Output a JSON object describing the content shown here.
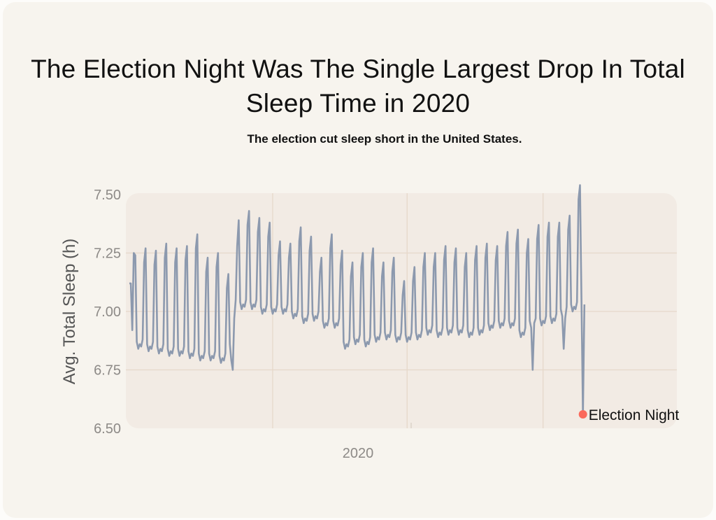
{
  "chart_data": {
    "type": "line",
    "title": "The Election Night Was The Single Largest Drop In Total Sleep Time in 2020",
    "subtitle": "The election cut sleep short in the United States.",
    "ylabel": "Avg. Total Sleep (h)",
    "xlabel": "2020",
    "ylim": [
      6.5,
      7.5
    ],
    "yticks": [
      "6.50",
      "6.75",
      "7.00",
      "7.25",
      "7.50"
    ],
    "xlim": [
      "2020-01-01",
      "2020-12-31"
    ],
    "x_start": "2020-01-01",
    "x_step": "1 day",
    "grid": true,
    "colors": {
      "line": "#8c99ae",
      "highlight": "#fb6a5c",
      "plot_bg": "#f2ebe4",
      "grid": "#e6d8ca"
    },
    "annotation": {
      "label": "Election Night",
      "date": "2020-11-03",
      "value": 6.56
    },
    "values": [
      7.12,
      7.12,
      6.92,
      7.25,
      7.24,
      6.87,
      6.84,
      6.86,
      6.85,
      6.88,
      7.21,
      7.27,
      6.86,
      6.83,
      6.85,
      6.84,
      6.87,
      7.2,
      7.26,
      6.85,
      6.82,
      6.84,
      6.83,
      6.86,
      7.23,
      7.29,
      6.84,
      6.81,
      6.83,
      6.82,
      6.85,
      7.21,
      7.27,
      6.84,
      6.81,
      6.83,
      6.82,
      6.85,
      7.22,
      7.28,
      6.83,
      6.8,
      6.82,
      6.81,
      6.84,
      7.27,
      7.33,
      6.82,
      6.79,
      6.81,
      6.8,
      6.83,
      7.17,
      7.23,
      6.82,
      6.79,
      6.81,
      6.8,
      6.83,
      7.19,
      7.25,
      6.81,
      6.78,
      6.8,
      6.79,
      6.82,
      7.1,
      7.16,
      6.86,
      6.79,
      6.75,
      6.97,
      7.05,
      7.28,
      7.39,
      7.04,
      7.01,
      7.03,
      7.02,
      7.05,
      7.37,
      7.43,
      7.04,
      7.01,
      7.03,
      7.02,
      7.05,
      7.34,
      7.4,
      7.02,
      6.99,
      7.01,
      7.0,
      7.03,
      7.32,
      7.38,
      7.02,
      6.99,
      7.01,
      7.0,
      7.03,
      7.24,
      7.3,
      7.02,
      6.99,
      7.01,
      7.0,
      7.03,
      7.23,
      7.29,
      7.0,
      6.97,
      6.99,
      6.98,
      7.01,
      7.3,
      7.36,
      6.98,
      6.95,
      6.97,
      6.96,
      6.99,
      7.26,
      7.32,
      6.99,
      6.96,
      6.98,
      6.97,
      7.0,
      7.17,
      7.23,
      6.96,
      6.93,
      6.95,
      6.94,
      6.97,
      7.27,
      7.33,
      6.96,
      6.93,
      6.95,
      6.94,
      6.97,
      7.2,
      7.26,
      6.87,
      6.84,
      6.86,
      6.85,
      6.88,
      7.15,
      7.21,
      6.89,
      6.86,
      6.88,
      6.87,
      6.9,
      7.19,
      7.25,
      6.88,
      6.85,
      6.87,
      6.86,
      6.89,
      7.21,
      7.27,
      6.9,
      6.87,
      6.89,
      6.88,
      6.91,
      7.15,
      7.21,
      6.91,
      6.88,
      6.9,
      6.89,
      6.92,
      7.17,
      7.23,
      6.9,
      6.87,
      6.89,
      6.88,
      6.91,
      7.07,
      7.13,
      6.9,
      6.87,
      6.89,
      6.88,
      6.91,
      7.13,
      7.19,
      6.91,
      6.88,
      6.9,
      6.89,
      6.92,
      7.19,
      7.25,
      6.93,
      6.9,
      6.92,
      6.91,
      6.94,
      7.19,
      7.25,
      6.92,
      6.89,
      6.91,
      6.9,
      6.93,
      7.22,
      7.28,
      6.93,
      6.9,
      6.92,
      6.91,
      6.94,
      7.21,
      7.27,
      6.93,
      6.9,
      6.92,
      6.91,
      6.94,
      7.19,
      7.25,
      6.92,
      6.89,
      6.91,
      6.9,
      6.93,
      7.22,
      7.28,
      6.93,
      6.9,
      6.92,
      6.91,
      6.94,
      7.23,
      7.29,
      6.95,
      6.92,
      6.94,
      6.93,
      6.96,
      7.22,
      7.28,
      6.96,
      6.93,
      6.95,
      6.94,
      6.97,
      7.28,
      7.34,
      6.96,
      6.93,
      6.95,
      6.94,
      6.97,
      7.29,
      7.35,
      6.92,
      6.89,
      6.91,
      6.9,
      6.93,
      7.25,
      7.31,
      6.96,
      6.93,
      6.75,
      6.95,
      6.97,
      7.31,
      7.37,
      6.97,
      6.94,
      6.96,
      6.95,
      6.98,
      7.32,
      7.38,
      6.98,
      6.95,
      6.97,
      6.96,
      6.99,
      7.32,
      7.38,
      7.01,
      6.98,
      6.84,
      6.97,
      7.02,
      7.35,
      7.41,
      7.03,
      7.0,
      7.02,
      7.01,
      7.04,
      7.48,
      7.54,
      7.05,
      6.56,
      7.03
    ]
  }
}
